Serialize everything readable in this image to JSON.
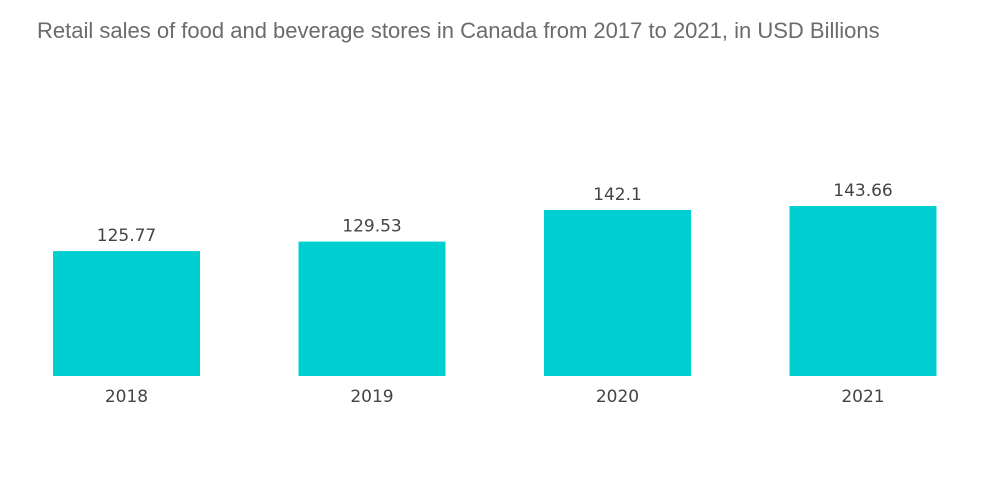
{
  "chart_data": {
    "type": "bar",
    "title": "Retail sales of food and beverage stores in Canada from 2017 to 2021, in USD Billions",
    "categories": [
      "2018",
      "2019",
      "2020",
      "2021"
    ],
    "values": [
      125.77,
      129.53,
      142.1,
      143.66
    ],
    "value_labels": [
      "125.77",
      "129.53",
      "142.1",
      "143.66"
    ],
    "xlabel": "",
    "ylabel": "",
    "ylim": [
      0,
      143.66
    ],
    "grid": false,
    "legend": "none",
    "bar_color": "#00cfd1"
  }
}
